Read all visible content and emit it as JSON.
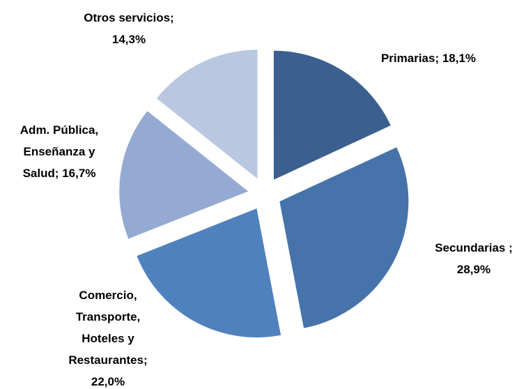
{
  "chart_data": {
    "type": "pie",
    "values": [
      18.1,
      28.9,
      22.0,
      16.7,
      14.3
    ],
    "value_labels": [
      [
        "Primarias; 18,1%"
      ],
      [
        "Secundarias ;",
        "28,9%"
      ],
      [
        "Comercio,",
        "Transporte,",
        "Hoteles y",
        "Restaurantes;",
        "22,0%"
      ],
      [
        "Adm. Pública,",
        "Enseñanza y",
        "Salud; 16,7%"
      ],
      [
        "Otros servicios;",
        "14,3%"
      ]
    ],
    "colors": [
      "#3b5f8f",
      "#4673a9",
      "#4f81bd",
      "#95aad2",
      "#b9c7e1"
    ]
  }
}
